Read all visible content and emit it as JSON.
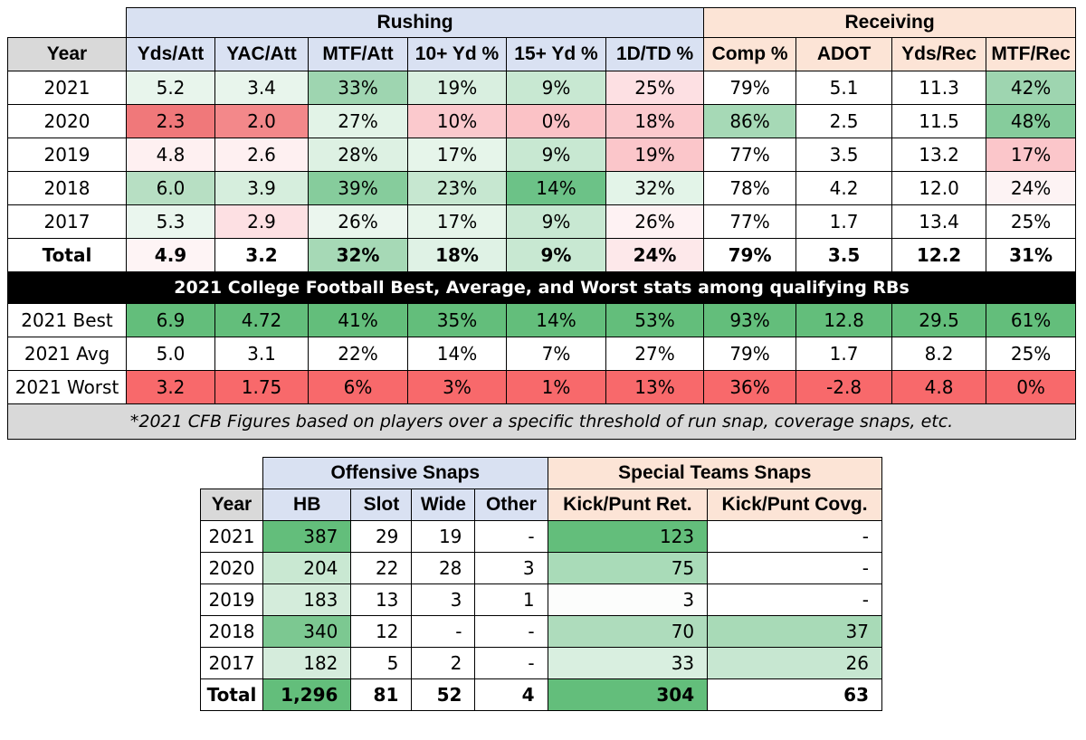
{
  "table1": {
    "groups": [
      "Rushing",
      "Receiving"
    ],
    "columns": [
      "Year",
      "Yds/Att",
      "YAC/Att",
      "MTF/Att",
      "10+ Yd %",
      "15+ Yd %",
      "1D/TD %",
      "Comp %",
      "ADOT",
      "Yds/Rec",
      "MTF/Rec"
    ],
    "rows": [
      {
        "cells": [
          "2021",
          "5.2",
          "3.4",
          "33%",
          "19%",
          "9%",
          "25%",
          "79%",
          "5.1",
          "11.3",
          "42%"
        ],
        "colors": [
          "#ffffff",
          "#e8f5ec",
          "#e8f5ec",
          "#9ed5b0",
          "#d9efe0",
          "#c8e8d2",
          "#fde0e3",
          "#ffffff",
          "#ffffff",
          "#ffffff",
          "#9ed5b0"
        ]
      },
      {
        "cells": [
          "2020",
          "2.3",
          "2.0",
          "27%",
          "10%",
          "0%",
          "18%",
          "86%",
          "2.5",
          "11.5",
          "48%"
        ],
        "colors": [
          "#ffffff",
          "#f0787a",
          "#f3888a",
          "#e2f3e7",
          "#fbc9cd",
          "#fbc2c6",
          "#fbc9cd",
          "#a6d9b6",
          "#ffffff",
          "#ffffff",
          "#86cc9c"
        ]
      },
      {
        "cells": [
          "2019",
          "4.8",
          "2.6",
          "28%",
          "17%",
          "9%",
          "19%",
          "77%",
          "3.5",
          "13.2",
          "17%"
        ],
        "colors": [
          "#ffffff",
          "#fef0f1",
          "#fef0f1",
          "#ddf1e3",
          "#e6f5ea",
          "#c8e8d2",
          "#fbc6ca",
          "#ffffff",
          "#ffffff",
          "#ffffff",
          "#fbc6ca"
        ]
      },
      {
        "cells": [
          "2018",
          "6.0",
          "3.9",
          "39%",
          "23%",
          "14%",
          "32%",
          "78%",
          "4.2",
          "12.0",
          "24%"
        ],
        "colors": [
          "#ffffff",
          "#b7dfc3",
          "#d6eedd",
          "#86cc9c",
          "#c6e7d0",
          "#6cc287",
          "#e3f4e8",
          "#ffffff",
          "#ffffff",
          "#ffffff",
          "#fdf3f4"
        ]
      },
      {
        "cells": [
          "2017",
          "5.3",
          "2.9",
          "26%",
          "17%",
          "9%",
          "26%",
          "77%",
          "1.7",
          "13.4",
          "25%"
        ],
        "colors": [
          "#ffffff",
          "#eaf6ee",
          "#fde0e3",
          "#ebf6ee",
          "#e6f5ea",
          "#c8e8d2",
          "#fef2f3",
          "#ffffff",
          "#ffffff",
          "#ffffff",
          "#ffffff"
        ]
      },
      {
        "cells": [
          "Total",
          "4.9",
          "3.2",
          "32%",
          "18%",
          "9%",
          "24%",
          "79%",
          "3.5",
          "12.2",
          "31%"
        ],
        "colors": [
          "#ffffff",
          "#fef4f5",
          "#ffffff",
          "#a6d9b6",
          "#dff2e5",
          "#c8e8d2",
          "#fde8ea",
          "#ffffff",
          "#ffffff",
          "#ffffff",
          "#ffffff"
        ]
      }
    ],
    "banner": "2021 College Football Best, Average, and Worst stats among qualifying RBs",
    "ref_rows": [
      {
        "cells": [
          "2021 Best",
          "6.9",
          "4.72",
          "41%",
          "35%",
          "14%",
          "53%",
          "93%",
          "12.8",
          "29.5",
          "61%"
        ],
        "colors": [
          "#ffffff",
          "#63be7b",
          "#63be7b",
          "#63be7b",
          "#63be7b",
          "#63be7b",
          "#63be7b",
          "#63be7b",
          "#63be7b",
          "#63be7b",
          "#63be7b"
        ]
      },
      {
        "cells": [
          "2021 Avg",
          "5.0",
          "3.1",
          "22%",
          "14%",
          "7%",
          "27%",
          "79%",
          "1.7",
          "8.2",
          "25%"
        ],
        "colors": [
          "#ffffff",
          "#ffffff",
          "#ffffff",
          "#ffffff",
          "#ffffff",
          "#ffffff",
          "#ffffff",
          "#ffffff",
          "#ffffff",
          "#ffffff",
          "#ffffff"
        ]
      },
      {
        "cells": [
          "2021 Worst",
          "3.2",
          "1.75",
          "6%",
          "3%",
          "1%",
          "13%",
          "36%",
          "-2.8",
          "4.8",
          "0%"
        ],
        "colors": [
          "#ffffff",
          "#f8696b",
          "#f8696b",
          "#f8696b",
          "#f8696b",
          "#f8696b",
          "#f8696b",
          "#f8696b",
          "#f8696b",
          "#f8696b",
          "#f8696b"
        ]
      }
    ],
    "note": "*2021 CFB Figures based on players over a specific threshold of run snap, coverage snaps, etc."
  },
  "table2": {
    "groups": [
      "Offensive Snaps",
      "Special Teams Snaps"
    ],
    "columns": [
      "Year",
      "HB",
      "Slot",
      "Wide",
      "Other",
      "Kick/Punt Ret.",
      "Kick/Punt Covg."
    ],
    "rows": [
      {
        "cells": [
          "2021",
          "387",
          "29",
          "19",
          "-",
          "123",
          "-"
        ],
        "colors": [
          "#ffffff",
          "#63be7b",
          "#ffffff",
          "#ffffff",
          "#ffffff",
          "#63be7b",
          "#ffffff"
        ]
      },
      {
        "cells": [
          "2020",
          "204",
          "22",
          "28",
          "3",
          "75",
          "-"
        ],
        "colors": [
          "#ffffff",
          "#c9e8d2",
          "#ffffff",
          "#ffffff",
          "#ffffff",
          "#a9dbb8",
          "#ffffff"
        ]
      },
      {
        "cells": [
          "2019",
          "183",
          "13",
          "3",
          "1",
          "3",
          "-"
        ],
        "colors": [
          "#ffffff",
          "#d4ecdb",
          "#ffffff",
          "#ffffff",
          "#ffffff",
          "#fcfdfc",
          "#ffffff"
        ]
      },
      {
        "cells": [
          "2018",
          "340",
          "12",
          "-",
          "-",
          "70",
          "37"
        ],
        "colors": [
          "#ffffff",
          "#7cc891",
          "#ffffff",
          "#ffffff",
          "#ffffff",
          "#aedcbc",
          "#a8dab7"
        ]
      },
      {
        "cells": [
          "2017",
          "182",
          "5",
          "2",
          "-",
          "33",
          "26"
        ],
        "colors": [
          "#ffffff",
          "#d5ecdc",
          "#ffffff",
          "#ffffff",
          "#ffffff",
          "#d9efe0",
          "#c7e7d1"
        ]
      },
      {
        "cells": [
          "Total",
          "1,296",
          "81",
          "52",
          "4",
          "304",
          "63"
        ],
        "colors": [
          "#ffffff",
          "#63be7b",
          "#ffffff",
          "#ffffff",
          "#ffffff",
          "#63be7b",
          "#ffffff"
        ]
      }
    ]
  }
}
